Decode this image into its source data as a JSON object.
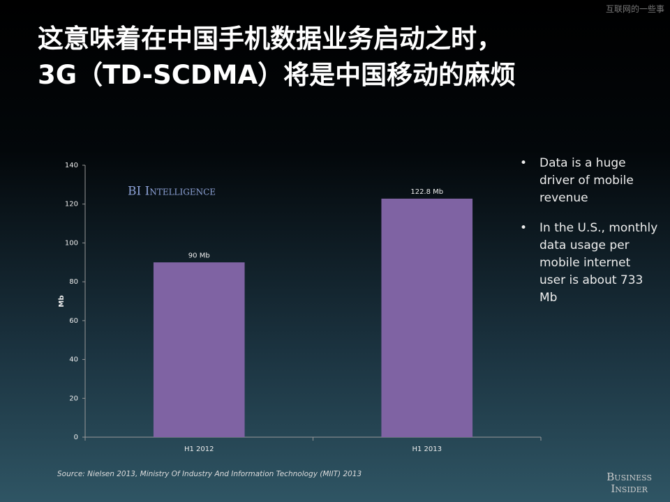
{
  "watermark": "互联网的一些事",
  "title": [
    "这意味着在中国手机数据业务启动之时，",
    "3G（TD-SCDMA）将是中国移动的麻烦"
  ],
  "bullets": [
    "Data is a huge driver of mobile revenue",
    "In  the U.S., monthly data usage per mobile internet user is about 733 Mb"
  ],
  "source": "Source: Nielsen 2013, Ministry Of Industry And Information Technology (MIIT) 2013",
  "logo": [
    "Business",
    "Insider"
  ],
  "chart_data": {
    "type": "bar",
    "brand": "BI Intelligence",
    "y_label": "Mb",
    "categories": [
      "H1 2012",
      "H1 2013"
    ],
    "values": [
      90,
      122.8
    ],
    "value_labels": [
      "90 Mb",
      "122.8 Mb"
    ],
    "color": "#7f63a3",
    "ylim": [
      0,
      140
    ],
    "yticks": [
      0,
      20,
      40,
      60,
      80,
      100,
      120,
      140
    ],
    "grid": false
  }
}
